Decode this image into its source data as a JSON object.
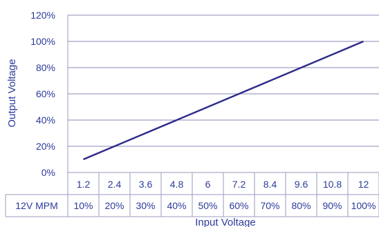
{
  "chart_data": {
    "type": "line",
    "xlabel": "Input Voltage",
    "ylabel": "Output Voltage",
    "ylim": [
      0,
      120
    ],
    "y_ticks": [
      "0%",
      "20%",
      "40%",
      "60%",
      "80%",
      "100%",
      "120%"
    ],
    "y_tick_values": [
      0,
      20,
      40,
      60,
      80,
      100,
      120
    ],
    "grid": true,
    "categories": [
      "1.2",
      "2.4",
      "3.6",
      "4.8",
      "6",
      "7.2",
      "8.4",
      "9.6",
      "10.8",
      "12"
    ],
    "series": [
      {
        "values": [
          10,
          20,
          30,
          40,
          50,
          60,
          70,
          80,
          90,
          100
        ]
      }
    ],
    "table_row": {
      "label": "12V MPM",
      "cells": [
        "10%",
        "20%",
        "30%",
        "40%",
        "50%",
        "60%",
        "70%",
        "80%",
        "90%",
        "100%"
      ]
    }
  },
  "colors": {
    "line": "#2e2c8a",
    "text": "#2b3a9a",
    "grid": "#8a8ab8",
    "axis": "#9a9ac0"
  }
}
